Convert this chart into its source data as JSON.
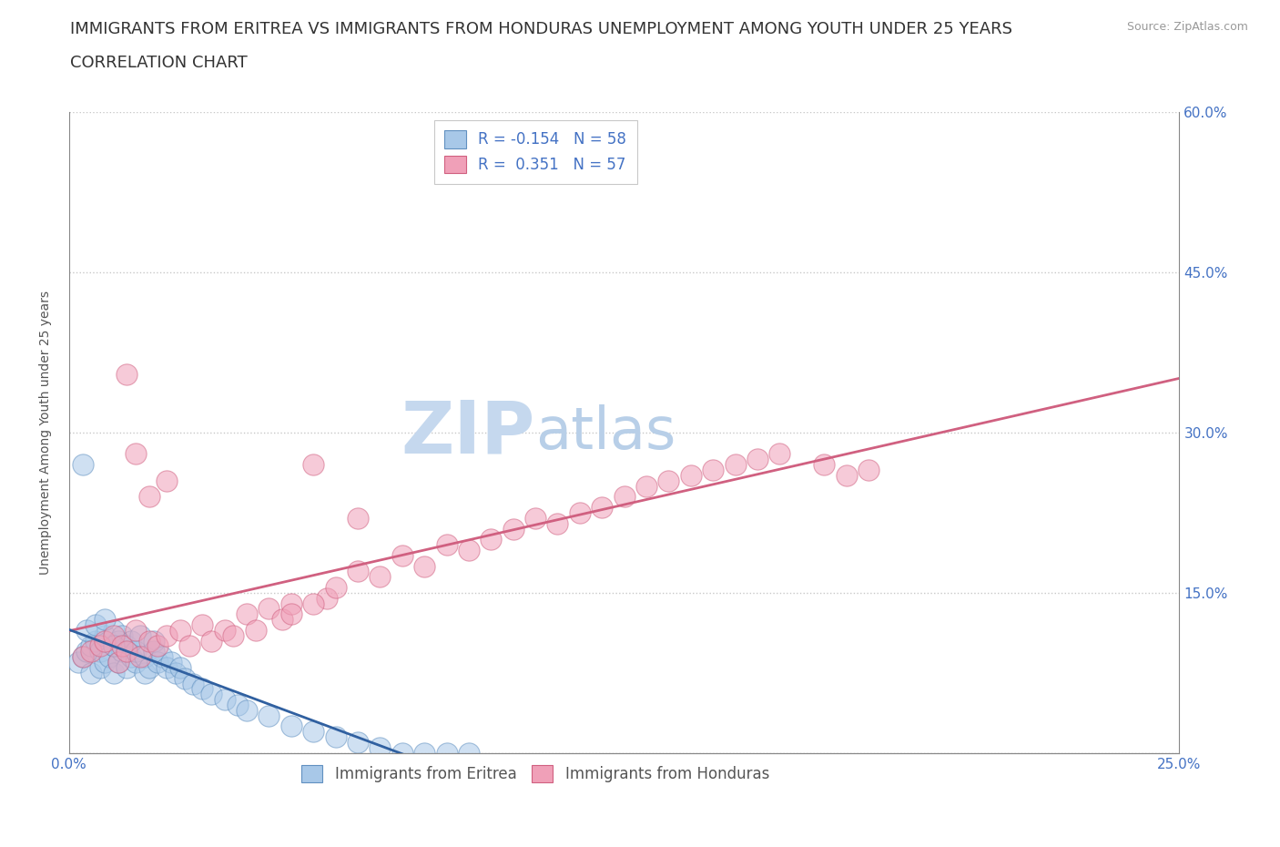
{
  "title_line1": "IMMIGRANTS FROM ERITREA VS IMMIGRANTS FROM HONDURAS UNEMPLOYMENT AMONG YOUTH UNDER 25 YEARS",
  "title_line2": "CORRELATION CHART",
  "source": "Source: ZipAtlas.com",
  "ylabel": "Unemployment Among Youth under 25 years",
  "xlim": [
    0,
    0.25
  ],
  "ylim": [
    0,
    0.6
  ],
  "xticks": [
    0.0,
    0.25
  ],
  "xticklabels": [
    "0.0%",
    "25.0%"
  ],
  "yticks": [
    0.0,
    0.15,
    0.3,
    0.45,
    0.6
  ],
  "yticklabels_right": [
    "",
    "15.0%",
    "30.0%",
    "45.0%",
    "60.0%"
  ],
  "grid_color": "#c8c8c8",
  "background_color": "#ffffff",
  "eritrea_color": "#a8c8e8",
  "eritrea_edge": "#6090c0",
  "honduras_color": "#f0a0b8",
  "honduras_edge": "#d06080",
  "eritrea_R": -0.154,
  "eritrea_N": 58,
  "honduras_R": 0.351,
  "honduras_N": 57,
  "eritrea_scatter_x": [
    0.002,
    0.003,
    0.004,
    0.005,
    0.005,
    0.006,
    0.007,
    0.007,
    0.008,
    0.008,
    0.009,
    0.01,
    0.01,
    0.01,
    0.011,
    0.011,
    0.012,
    0.012,
    0.013,
    0.013,
    0.014,
    0.014,
    0.015,
    0.015,
    0.016,
    0.017,
    0.017,
    0.018,
    0.019,
    0.019,
    0.02,
    0.021,
    0.022,
    0.023,
    0.024,
    0.025,
    0.026,
    0.028,
    0.03,
    0.032,
    0.035,
    0.038,
    0.04,
    0.045,
    0.05,
    0.055,
    0.06,
    0.065,
    0.07,
    0.075,
    0.08,
    0.085,
    0.09,
    0.003,
    0.004,
    0.006,
    0.008,
    0.01
  ],
  "eritrea_scatter_y": [
    0.085,
    0.09,
    0.095,
    0.1,
    0.075,
    0.105,
    0.08,
    0.095,
    0.11,
    0.085,
    0.09,
    0.1,
    0.115,
    0.075,
    0.105,
    0.085,
    0.095,
    0.11,
    0.08,
    0.1,
    0.09,
    0.105,
    0.085,
    0.095,
    0.11,
    0.075,
    0.09,
    0.08,
    0.095,
    0.105,
    0.085,
    0.09,
    0.08,
    0.085,
    0.075,
    0.08,
    0.07,
    0.065,
    0.06,
    0.055,
    0.05,
    0.045,
    0.04,
    0.035,
    0.025,
    0.02,
    0.015,
    0.01,
    0.005,
    0.0,
    0.0,
    0.0,
    0.0,
    0.27,
    0.115,
    0.12,
    0.125,
    0.1
  ],
  "honduras_scatter_x": [
    0.003,
    0.005,
    0.007,
    0.008,
    0.01,
    0.011,
    0.012,
    0.013,
    0.015,
    0.016,
    0.018,
    0.02,
    0.022,
    0.025,
    0.027,
    0.03,
    0.032,
    0.035,
    0.037,
    0.04,
    0.042,
    0.045,
    0.048,
    0.05,
    0.055,
    0.058,
    0.06,
    0.065,
    0.07,
    0.075,
    0.08,
    0.085,
    0.09,
    0.095,
    0.1,
    0.105,
    0.11,
    0.115,
    0.12,
    0.125,
    0.13,
    0.135,
    0.14,
    0.145,
    0.15,
    0.155,
    0.16,
    0.17,
    0.175,
    0.18,
    0.013,
    0.015,
    0.018,
    0.022,
    0.05,
    0.055,
    0.065
  ],
  "honduras_scatter_y": [
    0.09,
    0.095,
    0.1,
    0.105,
    0.11,
    0.085,
    0.1,
    0.095,
    0.115,
    0.09,
    0.105,
    0.1,
    0.11,
    0.115,
    0.1,
    0.12,
    0.105,
    0.115,
    0.11,
    0.13,
    0.115,
    0.135,
    0.125,
    0.14,
    0.27,
    0.145,
    0.155,
    0.17,
    0.165,
    0.185,
    0.175,
    0.195,
    0.19,
    0.2,
    0.21,
    0.22,
    0.215,
    0.225,
    0.23,
    0.24,
    0.25,
    0.255,
    0.26,
    0.265,
    0.27,
    0.275,
    0.28,
    0.27,
    0.26,
    0.265,
    0.355,
    0.28,
    0.24,
    0.255,
    0.13,
    0.14,
    0.22
  ],
  "watermark_zip": "ZIP",
  "watermark_atlas": "atlas",
  "watermark_color_zip": "#c5d8ee",
  "watermark_color_atlas": "#b8cfe8",
  "title_fontsize": 13,
  "subtitle_fontsize": 13,
  "axis_label_fontsize": 10,
  "tick_fontsize": 11,
  "legend_fontsize": 12
}
